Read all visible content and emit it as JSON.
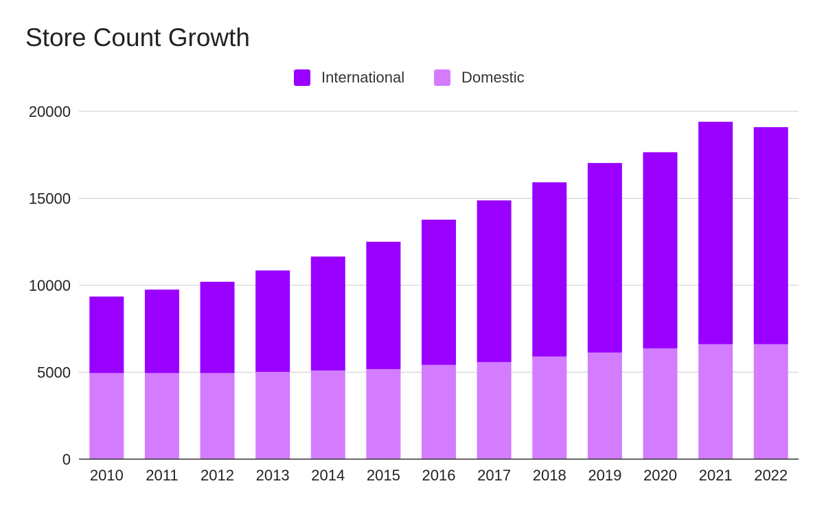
{
  "chart_data": {
    "type": "bar",
    "stacked": true,
    "title": "Store Count Growth",
    "xlabel": "",
    "ylabel": "",
    "categories": [
      "2010",
      "2011",
      "2012",
      "2013",
      "2014",
      "2015",
      "2016",
      "2017",
      "2018",
      "2019",
      "2020",
      "2021",
      "2022"
    ],
    "series": [
      {
        "name": "Domestic",
        "color": "#d37cff",
        "values": [
          4950,
          4950,
          4950,
          5020,
          5100,
          5180,
          5420,
          5580,
          5900,
          6130,
          6370,
          6610,
          6610
        ]
      },
      {
        "name": "International",
        "color": "#9900ff",
        "values": [
          4400,
          4800,
          5250,
          5830,
          6550,
          7320,
          8350,
          9300,
          10020,
          10900,
          11280,
          12790,
          12480
        ]
      }
    ],
    "legend_order": [
      "International",
      "Domestic"
    ],
    "legend_position": "top-center",
    "ylim": [
      0,
      20000
    ],
    "yticks": [
      "0",
      "5000",
      "10000",
      "15000",
      "20000"
    ],
    "grid": true
  }
}
